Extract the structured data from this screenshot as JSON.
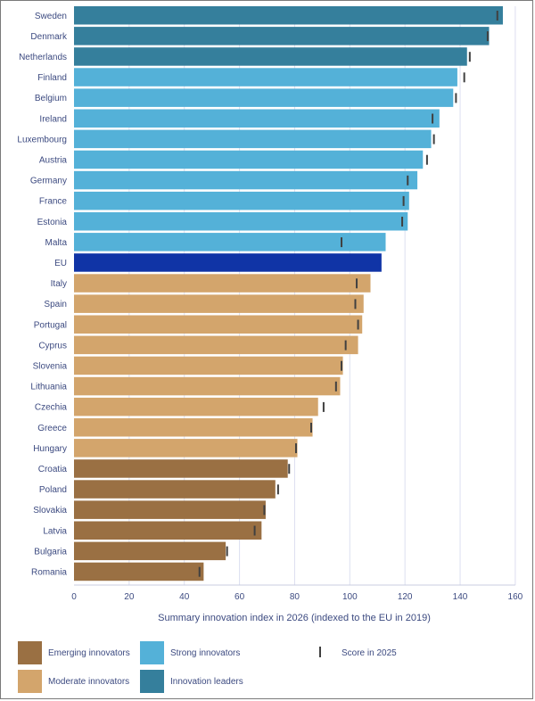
{
  "chart_data": {
    "type": "bar",
    "orientation": "horizontal",
    "xlabel": "Summary innovation index in 2026 (indexed to the EU in 2019)",
    "xlim": [
      0,
      160
    ],
    "xticks": [
      0,
      20,
      40,
      60,
      80,
      100,
      120,
      140,
      160
    ],
    "grid": true,
    "legend_placement": "bottom",
    "colors": {
      "emerging": "#9a7043",
      "moderate": "#d3a56c",
      "strong": "#54b1d8",
      "leaders": "#357f9c",
      "eu": "#1034a6",
      "marker": "#404040"
    },
    "legend": [
      {
        "key": "emerging",
        "label": "Emerging innovators"
      },
      {
        "key": "strong",
        "label": "Strong innovators"
      },
      {
        "key": "marker",
        "label": "Score in 2025"
      },
      {
        "key": "moderate",
        "label": "Moderate innovators"
      },
      {
        "key": "leaders",
        "label": "Innovation leaders"
      }
    ],
    "series": [
      {
        "name": "Score 2026",
        "values": [
          155.5,
          150.5,
          142.5,
          139,
          137.5,
          132.5,
          129.5,
          126.5,
          124.5,
          121.5,
          121,
          113,
          111.5,
          107.5,
          105,
          104.5,
          103,
          97.5,
          96.5,
          88.5,
          86.5,
          81,
          77.5,
          73,
          69.5,
          68,
          55,
          47
        ]
      },
      {
        "name": "Score in 2025",
        "values": [
          153.5,
          150,
          143.5,
          141.5,
          138.5,
          130,
          130.5,
          128,
          121,
          119.5,
          119,
          97,
          null,
          102.5,
          102,
          103,
          98.5,
          97,
          95,
          90.5,
          86,
          80.5,
          78,
          74,
          69,
          65.5,
          55.5,
          45.5
        ]
      }
    ],
    "categories": [
      "Sweden",
      "Denmark",
      "Netherlands",
      "Finland",
      "Belgium",
      "Ireland",
      "Luxembourg",
      "Austria",
      "Germany",
      "France",
      "Estonia",
      "Malta",
      "EU",
      "Italy",
      "Spain",
      "Portugal",
      "Cyprus",
      "Slovenia",
      "Lithuania",
      "Czechia",
      "Greece",
      "Hungary",
      "Croatia",
      "Poland",
      "Slovakia",
      "Latvia",
      "Bulgaria",
      "Romania"
    ],
    "groups": [
      "leaders",
      "leaders",
      "leaders",
      "strong",
      "strong",
      "strong",
      "strong",
      "strong",
      "strong",
      "strong",
      "strong",
      "strong",
      "eu",
      "moderate",
      "moderate",
      "moderate",
      "moderate",
      "moderate",
      "moderate",
      "moderate",
      "moderate",
      "moderate",
      "emerging",
      "emerging",
      "emerging",
      "emerging",
      "emerging",
      "emerging"
    ]
  }
}
